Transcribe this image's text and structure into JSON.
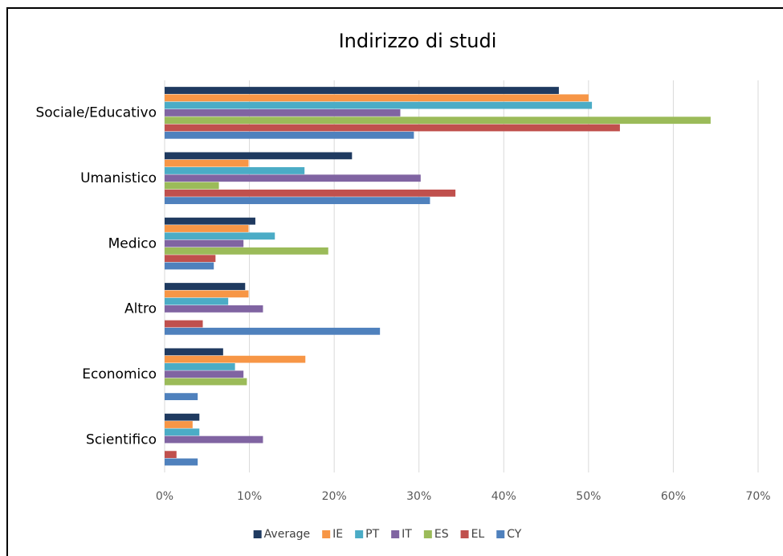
{
  "chart_data": {
    "type": "bar",
    "orientation": "horizontal",
    "title": "Indirizzo di studi",
    "categories": [
      "Sociale/Educativo",
      "Umanistico",
      "Medico",
      "Altro",
      "Economico",
      "Scientifico"
    ],
    "series": [
      {
        "name": "Average",
        "color": "#1f3a60",
        "values": [
          46.5,
          22.1,
          10.7,
          9.5,
          6.9,
          4.1
        ]
      },
      {
        "name": "IE",
        "color": "#f79646",
        "values": [
          50,
          9.9,
          9.9,
          9.9,
          16.6,
          3.3
        ]
      },
      {
        "name": "PT",
        "color": "#4bacc6",
        "values": [
          50.4,
          16.5,
          13,
          7.5,
          8.3,
          4.1
        ]
      },
      {
        "name": "IT",
        "color": "#8064a2",
        "values": [
          27.8,
          30.2,
          9.3,
          11.6,
          9.3,
          11.6
        ]
      },
      {
        "name": "ES",
        "color": "#9bbb59",
        "values": [
          64.4,
          6.4,
          19.3,
          0,
          9.7,
          0
        ]
      },
      {
        "name": "EL",
        "color": "#c0504d",
        "values": [
          53.7,
          34.3,
          6,
          4.5,
          0,
          1.4
        ]
      },
      {
        "name": "CY",
        "color": "#4f81bd",
        "values": [
          29.4,
          31.3,
          5.8,
          25.4,
          3.9,
          3.9
        ]
      }
    ],
    "xlim": [
      0,
      70
    ],
    "xticks": [
      {
        "value": 0,
        "label": "0%"
      },
      {
        "value": 10,
        "label": "10%"
      },
      {
        "value": 20,
        "label": "20%"
      },
      {
        "value": 30,
        "label": "30%"
      },
      {
        "value": 40,
        "label": "40%"
      },
      {
        "value": 50,
        "label": "50%"
      },
      {
        "value": 60,
        "label": "60%"
      },
      {
        "value": 70,
        "label": "70%"
      }
    ],
    "grid": true,
    "legend": "bottom"
  }
}
